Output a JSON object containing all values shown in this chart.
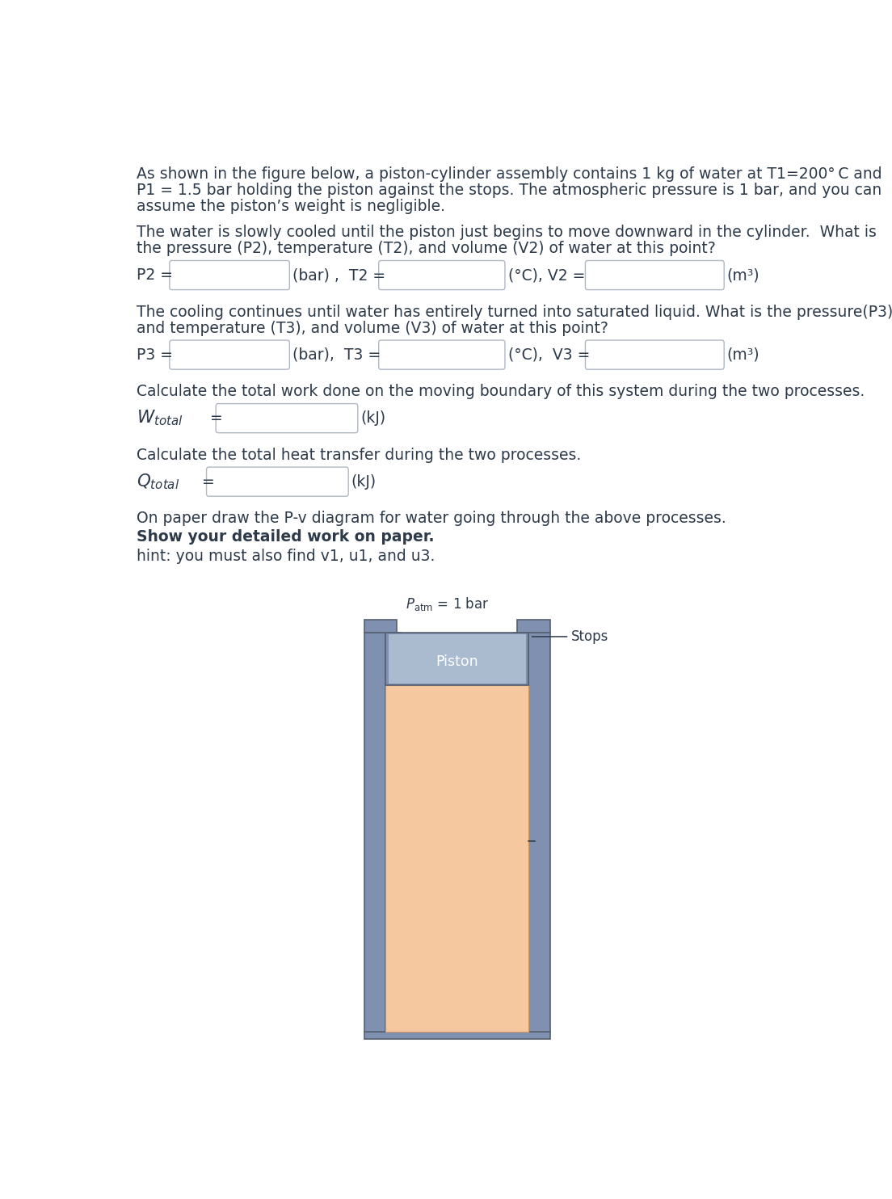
{
  "bg_color": "#ffffff",
  "text_color": "#2d3a4a",
  "para1_lines": [
    "As shown in the figure below, a piston-cylinder assembly contains 1 kg of water at T1=200° C and",
    "P1 = 1.5 bar holding the piston against the stops. The atmospheric pressure is 1 bar, and you can",
    "assume the piston’s weight is negligible."
  ],
  "para2_lines": [
    "The water is slowly cooled until the piston just begins to move downward in the cylinder.  What is",
    "the pressure (P2), temperature (T2), and volume (V2) of water at this point?"
  ],
  "para3_lines": [
    "The cooling continues until water has entirely turned into saturated liquid. What is the pressure(P3)",
    "and temperature (T3), and volume (V3) of water at this point?"
  ],
  "para4": "Calculate the total work done on the moving boundary of this system during the two processes.",
  "para5": "Calculate the total heat transfer during the two processes.",
  "para6": "On paper draw the P-v diagram for water going through the above processes.",
  "para7": "Show your detailed work on paper.",
  "para8": "hint: you must also find v1, u1, and u3.",
  "box_border_color": "#b0b8c4",
  "box_fill_color": "#ffffff",
  "cyl_wall_color": "#8090b0",
  "cyl_wall_edge": "#556070",
  "cyl_fluid_color": "#f5c8a0",
  "cyl_piston_color": "#8090b0",
  "cyl_piston_light": "#aabbd0"
}
